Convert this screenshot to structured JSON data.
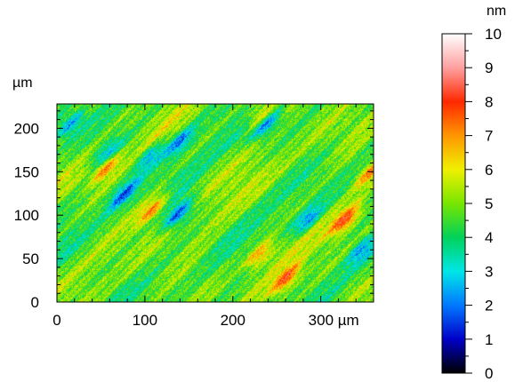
{
  "chart_data": {
    "type": "heatmap",
    "title": "",
    "xlabel": "",
    "ylabel": "",
    "x_unit": "µm",
    "y_unit": "µm",
    "z_unit": "nm",
    "xlim": [
      0,
      360
    ],
    "ylim": [
      0,
      228
    ],
    "zlim": [
      0,
      10
    ],
    "x_ticks": [
      0,
      100,
      200,
      300
    ],
    "x_tick_labels": [
      "0",
      "100",
      "200",
      "300 µm"
    ],
    "y_ticks": [
      0,
      50,
      100,
      150,
      200
    ],
    "y_tick_labels": [
      "0",
      "50",
      "100",
      "150",
      "200"
    ],
    "colorbar_ticks": [
      0,
      1,
      2,
      3,
      4,
      5,
      6,
      7,
      8,
      9,
      10
    ],
    "colorbar_tick_labels": [
      "0",
      "1",
      "2",
      "3",
      "4",
      "5",
      "6",
      "7",
      "8",
      "9",
      "10"
    ],
    "colormap": [
      {
        "value": 0,
        "color": "#000000"
      },
      {
        "value": 1,
        "color": "#0000c8"
      },
      {
        "value": 2,
        "color": "#0078ff"
      },
      {
        "value": 3,
        "color": "#00e6e6"
      },
      {
        "value": 4,
        "color": "#00d25a"
      },
      {
        "value": 5,
        "color": "#78e600"
      },
      {
        "value": 6,
        "color": "#f0f000"
      },
      {
        "value": 7,
        "color": "#ff9600"
      },
      {
        "value": 8,
        "color": "#ff2800"
      },
      {
        "value": 9,
        "color": "#ffa0a0"
      },
      {
        "value": 10,
        "color": "#ffffff"
      }
    ],
    "surface_character": "diagonal streaks running from lower-left to upper-right; height mostly 3-6 nm",
    "features": [
      {
        "x": 15,
        "y": 205,
        "z": 2.5
      },
      {
        "x": 55,
        "y": 170,
        "z": 2.6
      },
      {
        "x": 75,
        "y": 125,
        "z": 2.2
      },
      {
        "x": 105,
        "y": 168,
        "z": 2.5
      },
      {
        "x": 138,
        "y": 102,
        "z": 1.6
      },
      {
        "x": 140,
        "y": 185,
        "z": 2.2
      },
      {
        "x": 238,
        "y": 205,
        "z": 1.8
      },
      {
        "x": 285,
        "y": 95,
        "z": 2.3
      },
      {
        "x": 345,
        "y": 60,
        "z": 2.5
      },
      {
        "x": 55,
        "y": 155,
        "z": 7.6
      },
      {
        "x": 108,
        "y": 107,
        "z": 7.4
      },
      {
        "x": 230,
        "y": 55,
        "z": 7.3
      },
      {
        "x": 260,
        "y": 27,
        "z": 7.8
      },
      {
        "x": 328,
        "y": 95,
        "z": 8.0
      },
      {
        "x": 355,
        "y": 150,
        "z": 7.0
      },
      {
        "x": 232,
        "y": 215,
        "z": 7.0
      }
    ]
  }
}
